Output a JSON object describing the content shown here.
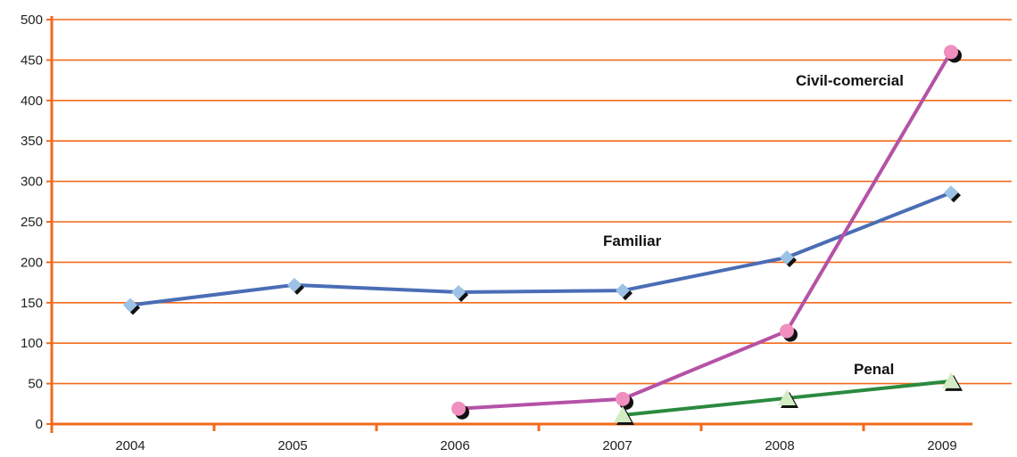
{
  "chart_data": {
    "type": "line",
    "title": "",
    "xlabel": "",
    "ylabel": "",
    "categories": [
      "2004",
      "2005",
      "2006",
      "2007",
      "2008",
      "2009"
    ],
    "ylim": [
      0,
      500
    ],
    "yticks": [
      0,
      50,
      100,
      150,
      200,
      250,
      300,
      350,
      400,
      450,
      500
    ],
    "grid": true,
    "legend": "none",
    "series": [
      {
        "name": "Familiar",
        "color": "#4a6db5",
        "marker": "diamond",
        "marker_color": "#9cc3e6",
        "points": [
          {
            "x": "2004",
            "y": 147
          },
          {
            "x": "2005",
            "y": 172
          },
          {
            "x": "2006",
            "y": 163
          },
          {
            "x": "2007",
            "y": 165
          },
          {
            "x": "2008",
            "y": 206
          },
          {
            "x": "2009",
            "y": 286
          }
        ]
      },
      {
        "name": "Civil-comercial",
        "color": "#b552a6",
        "marker": "circle",
        "marker_color": "#f08fc0",
        "points": [
          {
            "x": "2006",
            "y": 19
          },
          {
            "x": "2007",
            "y": 31
          },
          {
            "x": "2008",
            "y": 115
          },
          {
            "x": "2009",
            "y": 460
          }
        ]
      },
      {
        "name": "Penal",
        "color": "#2a8a3e",
        "marker": "triangle",
        "marker_color": "#d4ecc4",
        "points": [
          {
            "x": "2007",
            "y": 11
          },
          {
            "x": "2008",
            "y": 32
          },
          {
            "x": "2009",
            "y": 53
          }
        ]
      }
    ],
    "colors": {
      "axis": "#f26a1b",
      "grid": "#f26a1b",
      "marker_shadow": "#111111"
    }
  }
}
